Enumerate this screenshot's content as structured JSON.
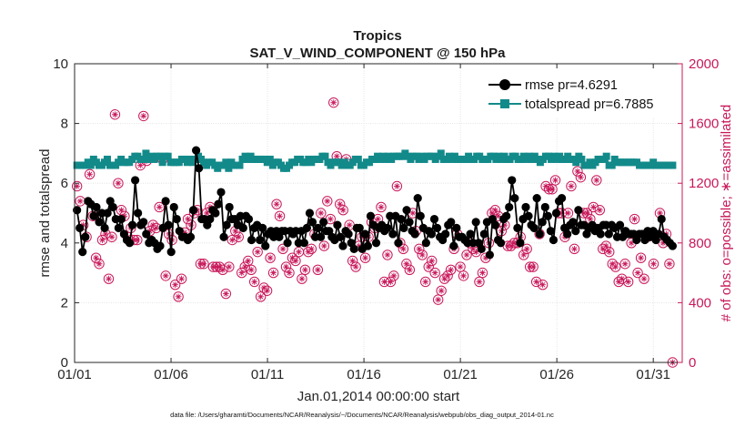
{
  "chart_data": {
    "type": "line",
    "title": "Tropics",
    "subtitle": "SAT_V_WIND_COMPONENT @ 150 hPa",
    "xlabel": "Jan.01,2014 00:00:00 start",
    "ylabel": "rmse and totalspread",
    "ylabel_right": "# of obs: o=possible; ∗=assimilated",
    "footnote": "data file: /Users/gharamti/Documents/NCAR/Reanalysis/~/Documents/NCAR/Reanalysis/webpub/obs_diag_output_2014-01.nc",
    "xlim": [
      0,
      31.5
    ],
    "ylim": [
      0,
      10
    ],
    "ylim_right": [
      0,
      2000
    ],
    "x_ticks": [
      0,
      5,
      10,
      15,
      20,
      25,
      30
    ],
    "x_tick_labels": [
      "01/01",
      "01/06",
      "01/11",
      "01/16",
      "01/21",
      "01/26",
      "01/31"
    ],
    "y_ticks": [
      0,
      2,
      4,
      6,
      8,
      10
    ],
    "y_tick_labels": [
      "0",
      "2",
      "4",
      "6",
      "8",
      "10"
    ],
    "y_right_ticks": [
      0,
      400,
      800,
      1200,
      1600,
      2000
    ],
    "y_right_tick_labels": [
      "0",
      "400",
      "800",
      "1200",
      "1600",
      "2000"
    ],
    "legend_position": "top-right",
    "colors": {
      "rmse": "#000000",
      "totalspread": "#138a8a",
      "obs": "#c8185a",
      "axis": "#262626"
    },
    "series": [
      {
        "name": "rmse pr=4.6291",
        "axis": "left",
        "marker": "circle",
        "values": [
          5.1,
          4.5,
          3.7,
          4.2,
          5.4,
          5.3,
          4.9,
          5.2,
          4.7,
          5.0,
          4.5,
          5.0,
          5.4,
          5.2,
          4.8,
          4.5,
          4.8,
          4.3,
          4.1,
          4.0,
          4.6,
          6.1,
          5.0,
          4.6,
          4.7,
          4.3,
          4.0,
          4.1,
          4.0,
          3.8,
          3.9,
          4.5,
          5.4,
          4.6,
          3.7,
          5.2,
          4.8,
          4.4,
          4.2,
          4.2,
          4.1,
          4.2,
          5.1,
          7.1,
          6.5,
          4.8,
          4.8,
          4.6,
          4.8,
          5.1,
          5.0,
          5.3,
          5.7,
          4.2,
          4.6,
          5.2,
          4.8,
          4.8,
          4.6,
          4.9,
          4.5,
          4.9,
          4.8,
          4.1,
          4.5,
          4.6,
          4.1,
          4.5,
          3.9,
          4.3,
          4.4,
          4.2,
          4.4,
          4.2,
          4.4,
          4.4,
          4.0,
          4.4,
          4.3,
          4.4,
          4.0,
          4.4,
          4.0,
          4.5,
          5.0,
          4.7,
          4.2,
          4.5,
          4.2,
          4.7,
          4.4,
          4.4,
          4.2,
          4.1,
          4.6,
          4.2,
          3.9,
          4.4,
          4.3,
          4.0,
          3.8,
          4.5,
          4.5,
          3.8,
          4.3,
          3.9,
          4.9,
          4.6,
          4.0,
          4.5,
          4.6,
          4.4,
          4.5,
          4.9,
          4.3,
          4.9,
          4.0,
          4.8,
          4.5,
          5.1,
          4.7,
          4.4,
          4.3,
          5.5,
          4.9,
          4.5,
          4.0,
          4.4,
          4.3,
          4.8,
          4.5,
          4.2,
          4.1,
          4.3,
          4.6,
          4.7,
          3.9,
          4.5,
          4.2,
          4.2,
          4.1,
          4.0,
          4.3,
          4.0,
          4.7,
          4.0,
          3.8,
          4.3,
          4.7,
          3.6,
          4.8,
          4.6,
          4.1,
          4.0,
          4.8,
          4.9,
          5.2,
          6.1,
          5.5,
          4.5,
          4.0,
          4.8,
          5.2,
          4.9,
          4.6,
          4.5,
          5.5,
          4.3,
          4.7,
          5.2,
          4.9,
          4.4,
          4.1,
          5.0,
          5.4,
          5.5,
          4.5,
          4.3,
          4.6,
          4.7,
          4.4,
          5.1,
          4.6,
          4.6,
          4.3,
          4.5,
          4.6,
          4.4,
          4.5,
          4.3,
          4.6,
          4.6,
          4.3,
          4.6,
          4.5,
          4.2,
          4.6,
          4.2,
          4.4,
          4.3,
          4.3,
          4.3,
          4.1,
          4.3,
          4.3,
          4.1,
          4.4,
          4.2,
          4.4,
          4.1,
          4.3,
          4.8,
          4.2,
          4.1,
          4.0,
          3.9
        ]
      },
      {
        "name": "totalspread pr=6.7885",
        "axis": "left",
        "marker": "square",
        "values": [
          6.6,
          6.6,
          6.6,
          6.6,
          6.7,
          6.6,
          6.8,
          6.7,
          6.6,
          6.6,
          6.7,
          6.8,
          6.6,
          6.6,
          6.6,
          6.7,
          6.8,
          6.7,
          6.7,
          6.7,
          6.8,
          6.9,
          6.9,
          6.8,
          6.8,
          7.0,
          6.8,
          6.9,
          6.8,
          6.9,
          6.9,
          6.7,
          6.9,
          6.9,
          6.7,
          6.7,
          6.7,
          6.7,
          6.8,
          6.8,
          6.7,
          6.8,
          6.7,
          6.8,
          6.9,
          6.8,
          6.7,
          6.6,
          6.7,
          6.7,
          6.6,
          6.5,
          6.6,
          6.6,
          6.7,
          6.5,
          6.7,
          6.6,
          6.6,
          6.6,
          6.8,
          6.9,
          6.8,
          6.9,
          6.8,
          6.8,
          6.8,
          6.8,
          6.8,
          6.7,
          6.8,
          6.6,
          6.7,
          6.7,
          6.6,
          6.5,
          6.5,
          6.6,
          6.7,
          6.7,
          6.8,
          6.8,
          6.7,
          6.7,
          6.8,
          6.7,
          6.8,
          6.8,
          6.8,
          6.9,
          6.9,
          6.7,
          6.6,
          6.7,
          6.7,
          6.7,
          6.6,
          6.7,
          6.6,
          6.6,
          6.7,
          6.8,
          6.8,
          6.6,
          6.6,
          6.7,
          6.7,
          6.8,
          6.8,
          6.9,
          6.8,
          6.9,
          6.8,
          6.9,
          6.8,
          6.9,
          6.9,
          6.9,
          6.9,
          7.0,
          6.9,
          6.8,
          6.9,
          6.9,
          6.8,
          6.9,
          6.8,
          6.9,
          6.9,
          6.9,
          6.8,
          6.9,
          7.0,
          6.8,
          6.8,
          6.9,
          6.8,
          6.9,
          6.8,
          6.8,
          6.8,
          6.8,
          6.9,
          6.8,
          6.8,
          6.9,
          6.9,
          6.8,
          6.8,
          6.8,
          6.9,
          6.9,
          6.8,
          6.9,
          6.8,
          6.9,
          6.8,
          6.8,
          6.9,
          6.9,
          6.8,
          6.8,
          6.9,
          6.8,
          6.9,
          6.8,
          6.9,
          6.8,
          6.7,
          6.8,
          6.9,
          6.9,
          6.8,
          6.9,
          6.8,
          6.9,
          6.8,
          6.8,
          6.9,
          6.8,
          6.8,
          6.7,
          6.9,
          6.8,
          6.6,
          6.6,
          6.7,
          6.6,
          6.7,
          6.8,
          6.8,
          6.8,
          6.9,
          6.6,
          6.6,
          6.8,
          6.7,
          6.7,
          6.7,
          6.7,
          6.7,
          6.7,
          6.7,
          6.7,
          6.6,
          6.6,
          6.6,
          6.6,
          6.6,
          6.7,
          6.6,
          6.6,
          6.6,
          6.6,
          6.6,
          6.6,
          6.6
        ]
      },
      {
        "name": "# of obs: possible / assimilated",
        "axis": "right",
        "marker": "circle-asterisk",
        "values": [
          1180,
          1080,
          920,
          840,
          1260,
          980,
          700,
          660,
          820,
          860,
          560,
          840,
          1660,
          1200,
          1020,
          980,
          840,
          900,
          820,
          820,
          1320,
          1650,
          1350,
          880,
          920,
          900,
          1040,
          1360,
          580,
          860,
          820,
          520,
          440,
          560,
          870,
          960,
          920,
          1000,
          1020,
          660,
          660,
          1000,
          1040,
          640,
          640,
          640,
          620,
          460,
          640,
          820,
          880,
          840,
          600,
          640,
          680,
          620,
          540,
          740,
          440,
          500,
          480,
          700,
          600,
          1060,
          980,
          760,
          640,
          600,
          700,
          680,
          740,
          560,
          620,
          740,
          760,
          860,
          620,
          1000,
          780,
          1080,
          960,
          1740,
          1380,
          1060,
          1020,
          1360,
          920,
          680,
          640,
          780,
          840,
          700,
          840,
          940,
          900,
          960,
          1040,
          540,
          720,
          540,
          580,
          1180,
          800,
          760,
          660,
          620,
          1000,
          880,
          760,
          720,
          540,
          640,
          680,
          600,
          420,
          480,
          560,
          580,
          620,
          760,
          860,
          640,
          580,
          720,
          800,
          760,
          740,
          540,
          600,
          700,
          800,
          1000,
          1020,
          980,
          880,
          920,
          780,
          780,
          800,
          800,
          840,
          720,
          760,
          640,
          640,
          540,
          860,
          520,
          1180,
          1160,
          1160,
          1220,
          1000,
          1000,
          840,
          1000,
          1180,
          760,
          1280,
          1240,
          1000,
          1000,
          960,
          1040,
          1220,
          1020,
          760,
          780,
          740,
          660,
          640,
          540,
          560,
          660,
          540,
          800,
          960,
          600,
          700,
          560,
          840,
          860,
          660,
          840,
          1000,
          800,
          860,
          660,
          0
        ]
      }
    ]
  }
}
